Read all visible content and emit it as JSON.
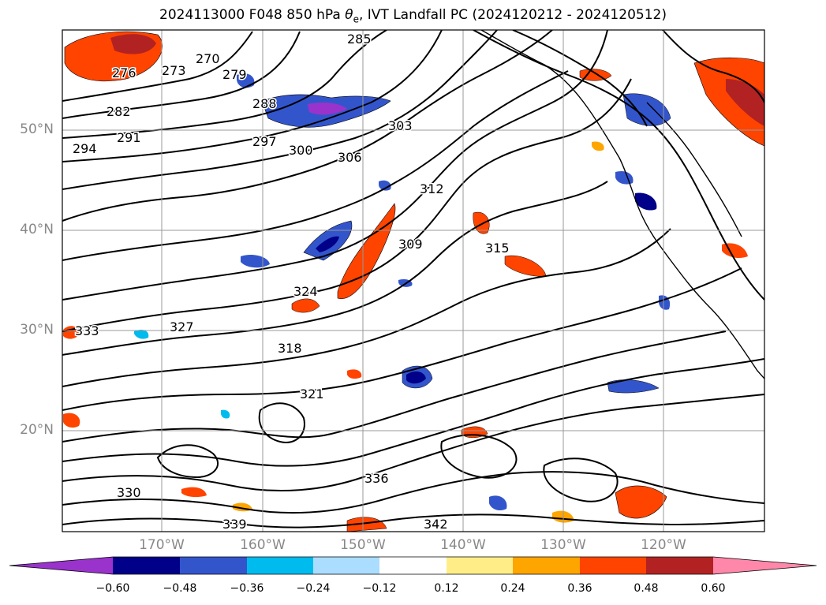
{
  "title": {
    "prefix": "2024113000 F048 850 hPa ",
    "theta_symbol": "θ",
    "theta_sub": "e",
    "suffix": ", IVT Landfall PC (2024120212 - 2024120512)"
  },
  "map": {
    "lon_ticks": [
      "170°W",
      "160°W",
      "150°W",
      "140°W",
      "130°W",
      "120°W"
    ],
    "lat_ticks": [
      "50°N",
      "40°N",
      "30°N",
      "20°N"
    ],
    "contour_labels": [
      "270",
      "273",
      "276",
      "279",
      "282",
      "285",
      "288",
      "291",
      "294",
      "297",
      "300",
      "303",
      "306",
      "309",
      "312",
      "315",
      "318",
      "321",
      "324",
      "327",
      "330",
      "333",
      "336",
      "339",
      "342"
    ],
    "gridlines": true,
    "field": "850 hPa theta-e contours with IVT landfall PC shading"
  },
  "colorbar": {
    "ticks": [
      "−0.60",
      "−0.48",
      "−0.36",
      "−0.24",
      "−0.12",
      "0.12",
      "0.24",
      "0.36",
      "0.48",
      "0.60"
    ],
    "colors": [
      "#9933cc",
      "#000088",
      "#3355cc",
      "#00bbee",
      "#aaddff",
      "#ffffff",
      "#ffee88",
      "#ffa500",
      "#ff4400",
      "#b22222",
      "#ff88aa"
    ],
    "extend": "both"
  }
}
